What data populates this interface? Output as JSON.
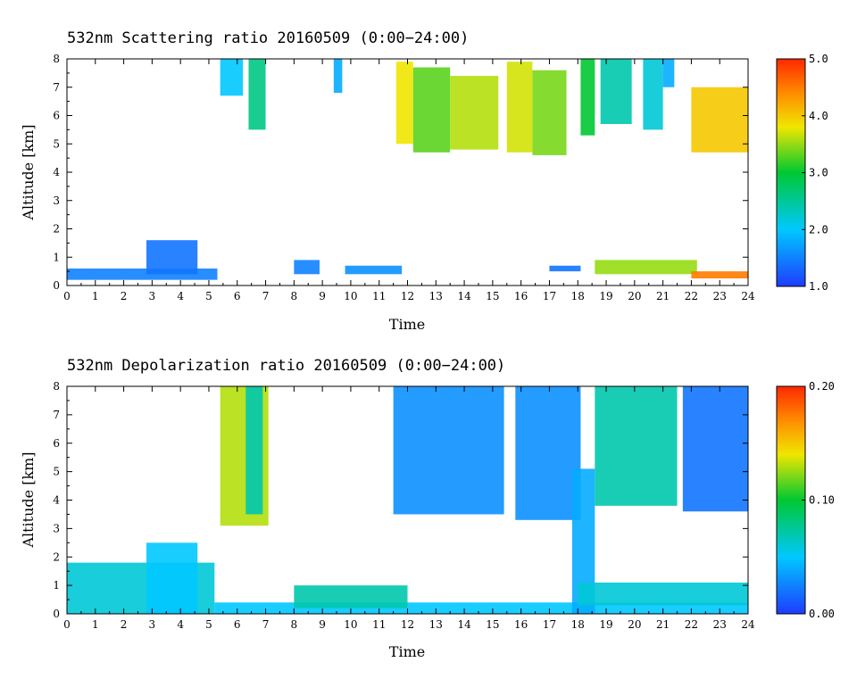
{
  "chart_data": [
    {
      "type": "heatmap",
      "title": "532nm Scattering ratio  20160509 (0:00−24:00)",
      "xlabel": "Time",
      "ylabel": "Altitude [km]",
      "xlim": [
        0,
        24
      ],
      "ylim": [
        0,
        8
      ],
      "x_ticks": [
        "0",
        "1",
        "2",
        "3",
        "4",
        "5",
        "6",
        "7",
        "8",
        "9",
        "10",
        "11",
        "12",
        "13",
        "14",
        "15",
        "16",
        "17",
        "18",
        "19",
        "20",
        "21",
        "22",
        "23",
        "24"
      ],
      "y_ticks": [
        "0",
        "1",
        "2",
        "3",
        "4",
        "5",
        "6",
        "7",
        "8"
      ],
      "colorbar": {
        "min": 1.0,
        "max": 5.0,
        "ticks": [
          "1.0",
          "2.0",
          "3.0",
          "4.0",
          "5.0"
        ]
      },
      "features": [
        {
          "t0": 5.4,
          "t1": 6.2,
          "z0": 6.7,
          "z1": 8.0,
          "v": 2.0
        },
        {
          "t0": 6.4,
          "t1": 7.0,
          "z0": 5.5,
          "z1": 8.0,
          "v": 2.6
        },
        {
          "t0": 9.4,
          "t1": 9.7,
          "z0": 6.8,
          "z1": 8.0,
          "v": 1.8
        },
        {
          "t0": 11.6,
          "t1": 12.2,
          "z0": 5.0,
          "z1": 7.9,
          "v": 3.8
        },
        {
          "t0": 12.2,
          "t1": 13.5,
          "z0": 4.7,
          "z1": 7.7,
          "v": 3.3
        },
        {
          "t0": 13.5,
          "t1": 15.2,
          "z0": 4.8,
          "z1": 7.4,
          "v": 3.6
        },
        {
          "t0": 15.5,
          "t1": 16.4,
          "z0": 4.7,
          "z1": 7.9,
          "v": 3.7
        },
        {
          "t0": 16.4,
          "t1": 17.6,
          "z0": 4.6,
          "z1": 7.6,
          "v": 3.4
        },
        {
          "t0": 18.1,
          "t1": 18.6,
          "z0": 5.3,
          "z1": 8.0,
          "v": 3.0
        },
        {
          "t0": 18.8,
          "t1": 19.9,
          "z0": 5.7,
          "z1": 8.0,
          "v": 2.4
        },
        {
          "t0": 20.3,
          "t1": 21.0,
          "z0": 5.5,
          "z1": 8.0,
          "v": 2.2
        },
        {
          "t0": 21.0,
          "t1": 21.4,
          "z0": 7.0,
          "z1": 8.0,
          "v": 1.8
        },
        {
          "t0": 22.0,
          "t1": 24.0,
          "z0": 4.7,
          "z1": 7.0,
          "v": 4.0
        },
        {
          "t0": 0.0,
          "t1": 5.3,
          "z0": 0.2,
          "z1": 0.6,
          "v": 1.5
        },
        {
          "t0": 2.8,
          "t1": 4.6,
          "z0": 0.4,
          "z1": 1.6,
          "v": 1.4
        },
        {
          "t0": 8.0,
          "t1": 8.9,
          "z0": 0.4,
          "z1": 0.9,
          "v": 1.5
        },
        {
          "t0": 9.8,
          "t1": 11.8,
          "z0": 0.4,
          "z1": 0.7,
          "v": 1.6
        },
        {
          "t0": 17.0,
          "t1": 18.1,
          "z0": 0.5,
          "z1": 0.7,
          "v": 1.4
        },
        {
          "t0": 18.6,
          "t1": 22.2,
          "z0": 0.4,
          "z1": 0.9,
          "v": 3.5
        },
        {
          "t0": 22.0,
          "t1": 24.0,
          "z0": 0.25,
          "z1": 0.5,
          "v": 4.5
        }
      ]
    },
    {
      "type": "heatmap",
      "title": "532nm Depolarization ratio  20160509 (0:00−24:00)",
      "xlabel": "Time",
      "ylabel": "Altitude [km]",
      "xlim": [
        0,
        24
      ],
      "ylim": [
        0,
        8
      ],
      "x_ticks": [
        "0",
        "1",
        "2",
        "3",
        "4",
        "5",
        "6",
        "7",
        "8",
        "9",
        "10",
        "11",
        "12",
        "13",
        "14",
        "15",
        "16",
        "17",
        "18",
        "19",
        "20",
        "21",
        "22",
        "23",
        "24"
      ],
      "y_ticks": [
        "0",
        "1",
        "2",
        "3",
        "4",
        "5",
        "6",
        "7",
        "8"
      ],
      "colorbar": {
        "min": 0.0,
        "max": 0.2,
        "ticks": [
          "0.00",
          "0.10",
          "0.20"
        ]
      },
      "features": [
        {
          "t0": 0.0,
          "t1": 5.2,
          "z0": 0.0,
          "z1": 1.8,
          "v": 0.06
        },
        {
          "t0": 2.8,
          "t1": 4.6,
          "z0": 0.0,
          "z1": 2.5,
          "v": 0.05
        },
        {
          "t0": 5.4,
          "t1": 7.1,
          "z0": 3.1,
          "z1": 8.0,
          "v": 0.13
        },
        {
          "t0": 6.3,
          "t1": 6.9,
          "z0": 3.5,
          "z1": 8.0,
          "v": 0.07
        },
        {
          "t0": 5.2,
          "t1": 24.0,
          "z0": 0.0,
          "z1": 0.4,
          "v": 0.05
        },
        {
          "t0": 8.0,
          "t1": 12.0,
          "z0": 0.2,
          "z1": 1.0,
          "v": 0.07
        },
        {
          "t0": 11.5,
          "t1": 15.4,
          "z0": 3.5,
          "z1": 8.0,
          "v": 0.03
        },
        {
          "t0": 15.8,
          "t1": 18.1,
          "z0": 3.3,
          "z1": 8.0,
          "v": 0.03
        },
        {
          "t0": 17.8,
          "t1": 18.6,
          "z0": 0.0,
          "z1": 5.1,
          "v": 0.04
        },
        {
          "t0": 18.6,
          "t1": 21.5,
          "z0": 3.8,
          "z1": 8.0,
          "v": 0.07
        },
        {
          "t0": 21.7,
          "t1": 24.0,
          "z0": 3.6,
          "z1": 8.0,
          "v": 0.02
        },
        {
          "t0": 18.0,
          "t1": 24.0,
          "z0": 0.3,
          "z1": 1.1,
          "v": 0.06
        }
      ]
    }
  ]
}
